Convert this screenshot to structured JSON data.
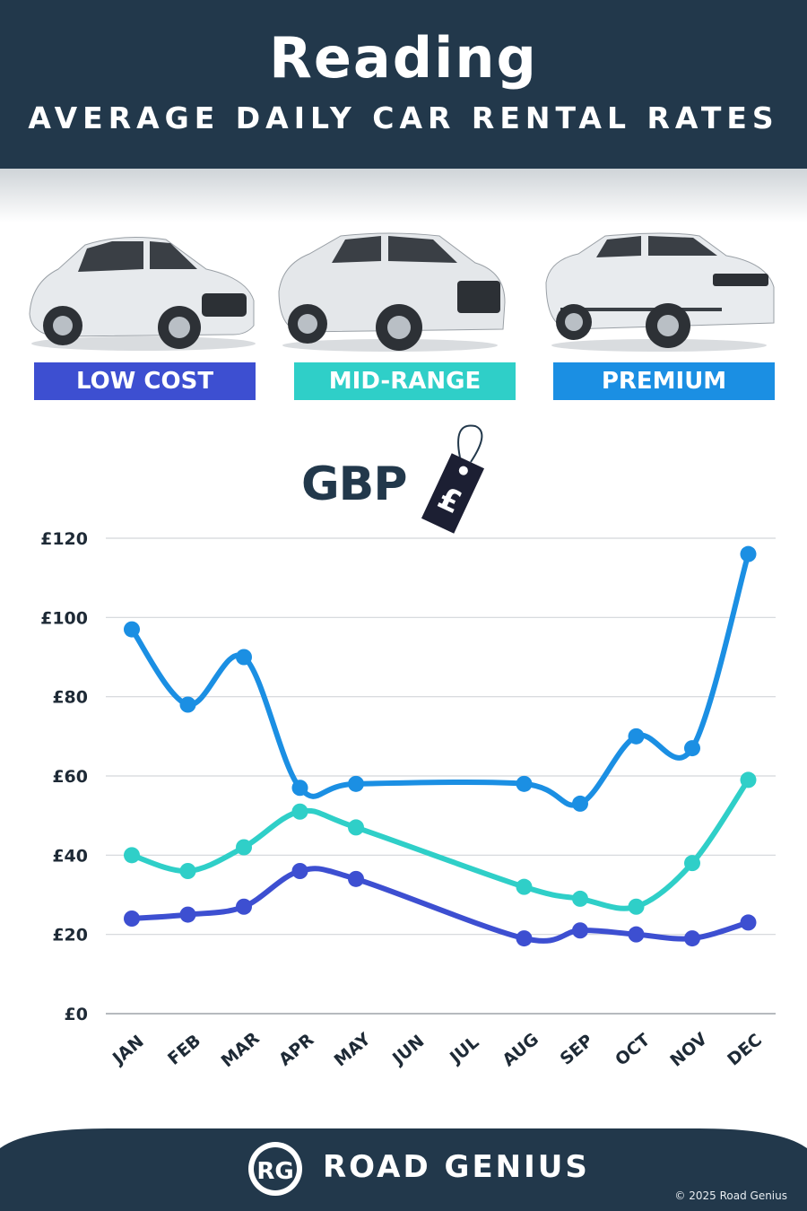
{
  "header": {
    "title": "Reading",
    "subtitle": "AVERAGE DAILY CAR RENTAL RATES"
  },
  "categories": [
    {
      "label": "LOW COST",
      "color": "#3d4fd1"
    },
    {
      "label": "MID-RANGE",
      "color": "#2fcfc8"
    },
    {
      "label": "PREMIUM",
      "color": "#1b8fe3"
    }
  ],
  "currency": {
    "label": "GBP",
    "icon": "pound-price-tag-icon"
  },
  "chart_data": {
    "type": "line",
    "categories": [
      "JAN",
      "FEB",
      "MAR",
      "APR",
      "MAY",
      "JUN",
      "JUL",
      "AUG",
      "SEP",
      "OCT",
      "NOV",
      "DEC"
    ],
    "y_ticks": [
      "£0",
      "£20",
      "£40",
      "£60",
      "£80",
      "£100",
      "£120"
    ],
    "ylim": [
      0,
      120
    ],
    "grid": true,
    "series": [
      {
        "name": "PREMIUM",
        "color": "#1b8fe3",
        "values": [
          97,
          78,
          90,
          57,
          58,
          null,
          null,
          58,
          53,
          70,
          67,
          116
        ]
      },
      {
        "name": "MID-RANGE",
        "color": "#2fcfc8",
        "values": [
          40,
          36,
          42,
          51,
          47,
          null,
          null,
          32,
          29,
          27,
          38,
          59
        ]
      },
      {
        "name": "LOW COST",
        "color": "#3d4fd1",
        "values": [
          24,
          25,
          27,
          36,
          34,
          null,
          null,
          19,
          21,
          20,
          19,
          23
        ]
      }
    ]
  },
  "footer": {
    "brand": "ROAD GENIUS",
    "logo": "RG",
    "copyright": "© 2025 Road Genius"
  }
}
